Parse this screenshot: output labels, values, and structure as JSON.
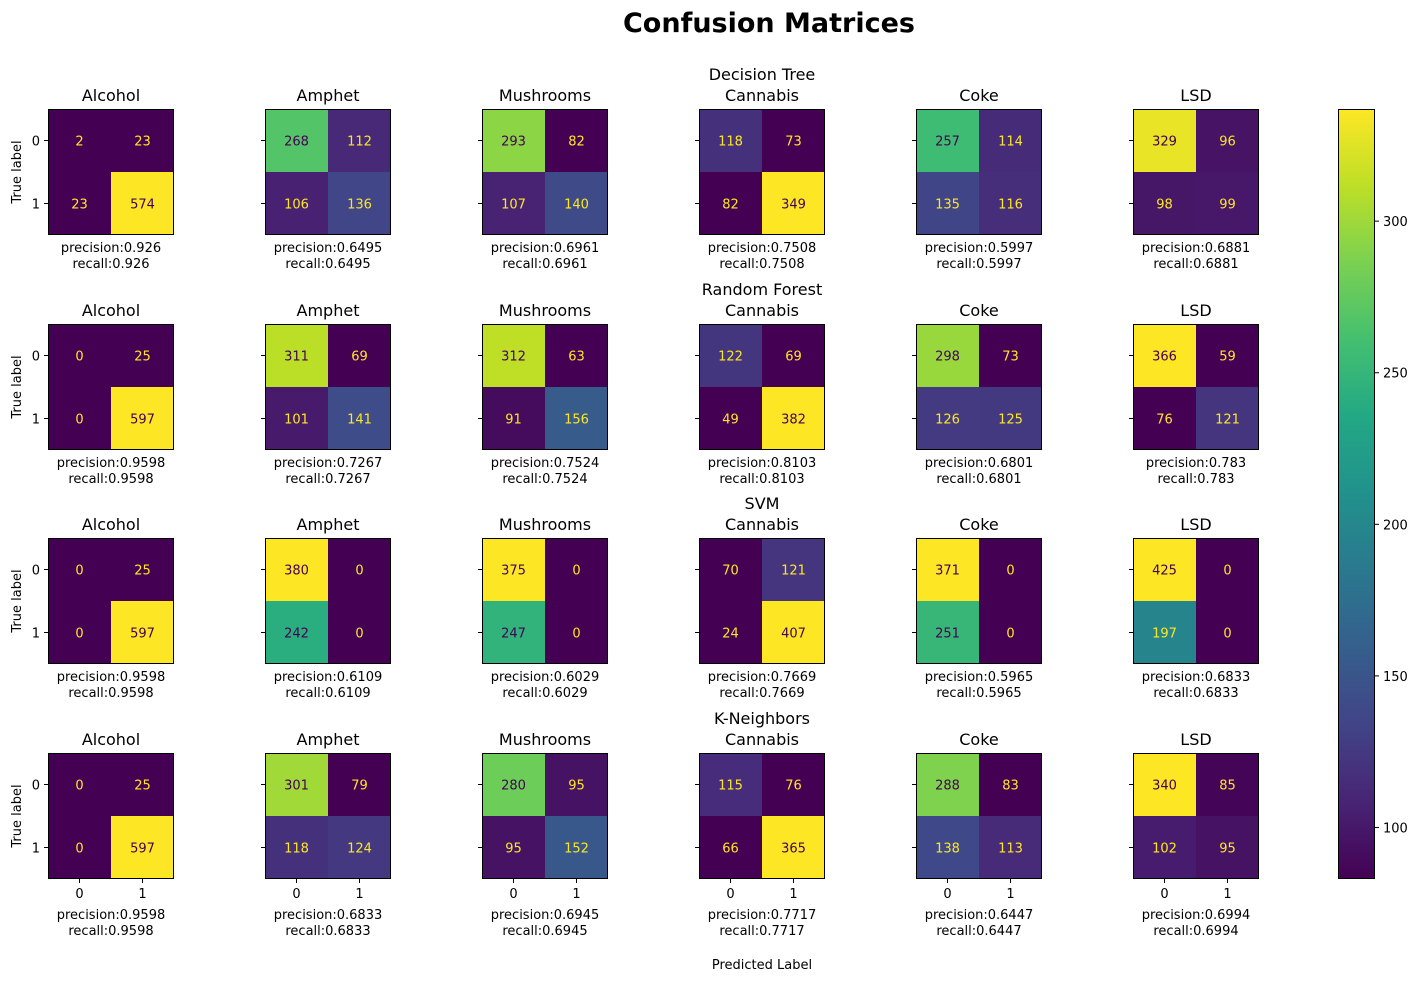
{
  "title": "Confusion Matrices",
  "xlabel": "Predicted Label",
  "ylabel": "True label",
  "chart_data": {
    "type": "heatmap",
    "colormap": "viridis",
    "color_range": [
      83,
      337
    ],
    "colorbar_ticks": [
      100,
      150,
      200,
      250,
      300
    ],
    "tick_labels": [
      "0",
      "1"
    ],
    "rows": [
      {
        "model": "Decision Tree",
        "matrices": [
          {
            "title": "Alcohol",
            "cells": [
              [
                2,
                23
              ],
              [
                23,
                574
              ]
            ],
            "precision": "precision:0.926",
            "recall": "recall:0.926"
          },
          {
            "title": "Amphet",
            "cells": [
              [
                268,
                112
              ],
              [
                106,
                136
              ]
            ],
            "precision": "precision:0.6495",
            "recall": "recall:0.6495"
          },
          {
            "title": "Mushrooms",
            "cells": [
              [
                293,
                82
              ],
              [
                107,
                140
              ]
            ],
            "precision": "precision:0.6961",
            "recall": "recall:0.6961"
          },
          {
            "title": "Cannabis",
            "cells": [
              [
                118,
                73
              ],
              [
                82,
                349
              ]
            ],
            "precision": "precision:0.7508",
            "recall": "recall:0.7508"
          },
          {
            "title": "Coke",
            "cells": [
              [
                257,
                114
              ],
              [
                135,
                116
              ]
            ],
            "precision": "precision:0.5997",
            "recall": "recall:0.5997"
          },
          {
            "title": "LSD",
            "cells": [
              [
                329,
                96
              ],
              [
                98,
                99
              ]
            ],
            "precision": "precision:0.6881",
            "recall": "recall:0.6881"
          }
        ]
      },
      {
        "model": "Random Forest",
        "matrices": [
          {
            "title": "Alcohol",
            "cells": [
              [
                0,
                25
              ],
              [
                0,
                597
              ]
            ],
            "precision": "precision:0.9598",
            "recall": "recall:0.9598"
          },
          {
            "title": "Amphet",
            "cells": [
              [
                311,
                69
              ],
              [
                101,
                141
              ]
            ],
            "precision": "precision:0.7267",
            "recall": "recall:0.7267"
          },
          {
            "title": "Mushrooms",
            "cells": [
              [
                312,
                63
              ],
              [
                91,
                156
              ]
            ],
            "precision": "precision:0.7524",
            "recall": "recall:0.7524"
          },
          {
            "title": "Cannabis",
            "cells": [
              [
                122,
                69
              ],
              [
                49,
                382
              ]
            ],
            "precision": "precision:0.8103",
            "recall": "recall:0.8103"
          },
          {
            "title": "Coke",
            "cells": [
              [
                298,
                73
              ],
              [
                126,
                125
              ]
            ],
            "precision": "precision:0.6801",
            "recall": "recall:0.6801"
          },
          {
            "title": "LSD",
            "cells": [
              [
                366,
                59
              ],
              [
                76,
                121
              ]
            ],
            "precision": "precision:0.783",
            "recall": "recall:0.783"
          }
        ]
      },
      {
        "model": "SVM",
        "matrices": [
          {
            "title": "Alcohol",
            "cells": [
              [
                0,
                25
              ],
              [
                0,
                597
              ]
            ],
            "precision": "precision:0.9598",
            "recall": "recall:0.9598"
          },
          {
            "title": "Amphet",
            "cells": [
              [
                380,
                0
              ],
              [
                242,
                0
              ]
            ],
            "precision": "precision:0.6109",
            "recall": "recall:0.6109"
          },
          {
            "title": "Mushrooms",
            "cells": [
              [
                375,
                0
              ],
              [
                247,
                0
              ]
            ],
            "precision": "precision:0.6029",
            "recall": "recall:0.6029"
          },
          {
            "title": "Cannabis",
            "cells": [
              [
                70,
                121
              ],
              [
                24,
                407
              ]
            ],
            "precision": "precision:0.7669",
            "recall": "recall:0.7669"
          },
          {
            "title": "Coke",
            "cells": [
              [
                371,
                0
              ],
              [
                251,
                0
              ]
            ],
            "precision": "precision:0.5965",
            "recall": "recall:0.5965"
          },
          {
            "title": "LSD",
            "cells": [
              [
                425,
                0
              ],
              [
                197,
                0
              ]
            ],
            "precision": "precision:0.6833",
            "recall": "recall:0.6833"
          }
        ]
      },
      {
        "model": "K-Neighbors",
        "matrices": [
          {
            "title": "Alcohol",
            "cells": [
              [
                0,
                25
              ],
              [
                0,
                597
              ]
            ],
            "precision": "precision:0.9598",
            "recall": "recall:0.9598"
          },
          {
            "title": "Amphet",
            "cells": [
              [
                301,
                79
              ],
              [
                118,
                124
              ]
            ],
            "precision": "precision:0.6833",
            "recall": "recall:0.6833"
          },
          {
            "title": "Mushrooms",
            "cells": [
              [
                280,
                95
              ],
              [
                95,
                152
              ]
            ],
            "precision": "precision:0.6945",
            "recall": "recall:0.6945"
          },
          {
            "title": "Cannabis",
            "cells": [
              [
                115,
                76
              ],
              [
                66,
                365
              ]
            ],
            "precision": "precision:0.7717",
            "recall": "recall:0.7717"
          },
          {
            "title": "Coke",
            "cells": [
              [
                288,
                83
              ],
              [
                138,
                113
              ]
            ],
            "precision": "precision:0.6447",
            "recall": "recall:0.6447"
          },
          {
            "title": "LSD",
            "cells": [
              [
                340,
                85
              ],
              [
                102,
                95
              ]
            ],
            "precision": "precision:0.6994",
            "recall": "recall:0.6994"
          }
        ]
      }
    ]
  }
}
